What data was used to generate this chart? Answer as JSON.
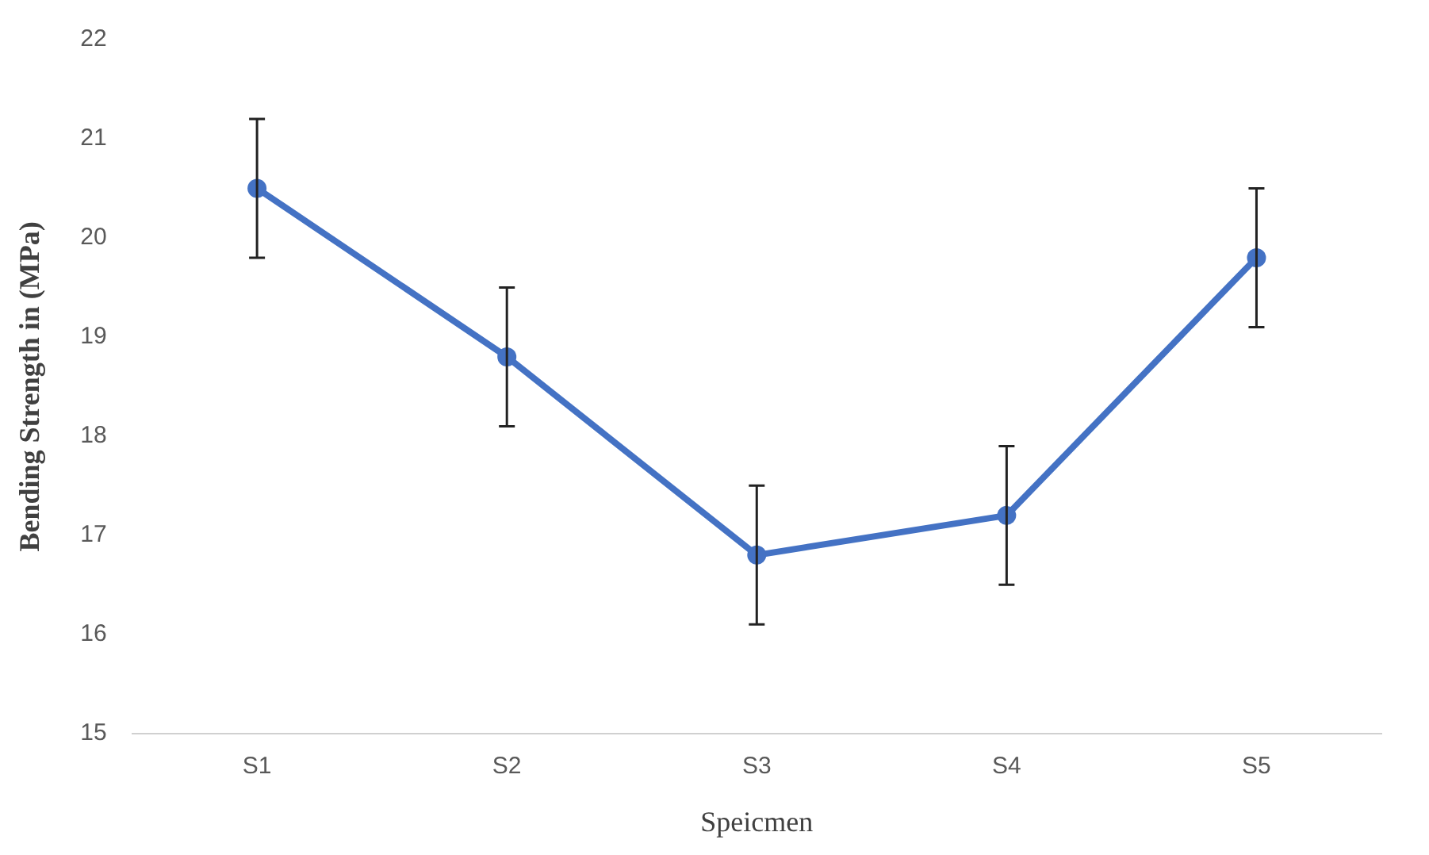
{
  "chart_data": {
    "type": "line",
    "xlabel": "Speicmen",
    "ylabel": "Bending Strength in (MPa)",
    "categories": [
      "S1",
      "S2",
      "S3",
      "S4",
      "S5"
    ],
    "series": [
      {
        "color": "#4472c4",
        "values": [
          20.5,
          18.8,
          16.8,
          17.2,
          19.8
        ],
        "errors": [
          0.7,
          0.7,
          0.7,
          0.7,
          0.7
        ]
      }
    ],
    "ylim": [
      15,
      22
    ],
    "yticks": [
      15,
      16,
      17,
      18,
      19,
      20,
      21,
      22
    ],
    "grid": false,
    "legend": false,
    "marker": "circle",
    "line_style": "solid"
  }
}
